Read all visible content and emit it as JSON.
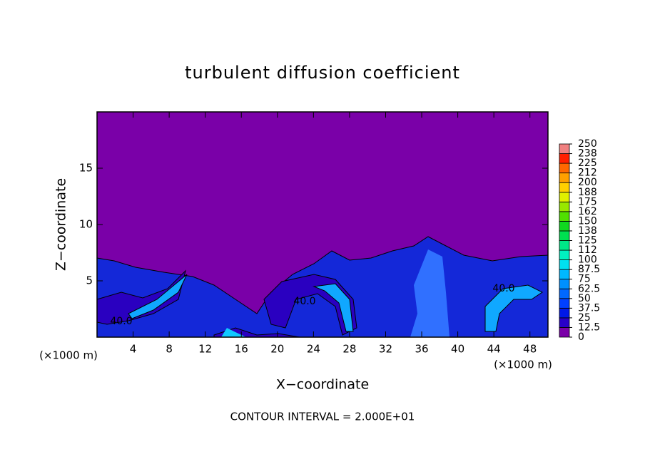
{
  "chart_data": {
    "type": "contour",
    "title": "turbulent diffusion coefficient",
    "x_label": "X−coordinate",
    "y_label": "Z−coordinate",
    "x_unit": "(×1000 m)",
    "y_unit": "(×1000 m)",
    "xlim": [
      0,
      50
    ],
    "xticks": [
      4,
      8,
      12,
      16,
      20,
      24,
      28,
      32,
      36,
      40,
      44,
      48
    ],
    "ylim": [
      0,
      20
    ],
    "yticks": [
      5,
      10,
      15
    ],
    "contour_interval": "CONTOUR INTERVAL = 2.000E+01",
    "contour_labels": [
      "40.0",
      "40.0",
      "40.0"
    ],
    "colorbar": {
      "ticks": [
        0,
        12.5,
        25,
        37.5,
        50,
        62.5,
        75,
        87.5,
        100,
        {
          "value": 112.5,
          "label": "112"
        },
        125,
        {
          "value": 137.5,
          "label": "138"
        },
        150,
        {
          "value": 162.5,
          "label": "162"
        },
        175,
        {
          "value": 187.5,
          "label": "188"
        },
        200,
        {
          "value": 212.5,
          "label": "212"
        },
        225,
        {
          "value": 237.5,
          "label": "238"
        },
        250
      ],
      "colors": [
        "#7a00a8",
        "#2800c8",
        "#0018e8",
        "#0040ff",
        "#0068ff",
        "#0090ff",
        "#00b8ff",
        "#00e0f0",
        "#00f0c0",
        "#00e888",
        "#00e050",
        "#10d820",
        "#50e000",
        "#98e800",
        "#e0f000",
        "#ffd000",
        "#ffa000",
        "#ff6800",
        "#ff2000",
        "#f08080"
      ]
    }
  }
}
